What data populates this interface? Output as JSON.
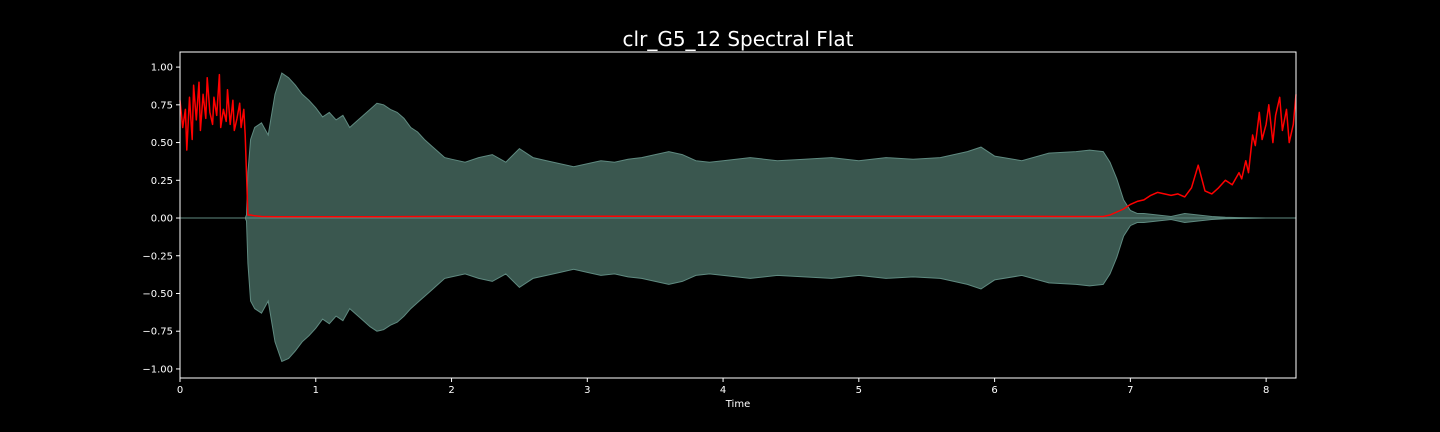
{
  "chart_data": {
    "type": "line",
    "title": "clr_G5_12 Spectral Flat",
    "xlabel": "Time",
    "ylabel": "",
    "xlim": [
      0,
      8.22
    ],
    "ylim": [
      -1.06,
      1.1
    ],
    "xticks": [
      0,
      1,
      2,
      3,
      4,
      5,
      6,
      7,
      8
    ],
    "xtick_labels": [
      "0",
      "1",
      "2",
      "3",
      "4",
      "5",
      "6",
      "7",
      "8"
    ],
    "yticks": [
      1.0,
      0.75,
      0.5,
      0.25,
      0.0,
      -0.25,
      -0.5,
      -0.75,
      -1.0
    ],
    "ytick_labels": [
      "1.00",
      "0.75",
      "0.50",
      "0.25",
      "0.00",
      "−0.25",
      "−0.50",
      "−0.75",
      "−1.00"
    ],
    "grid": false,
    "series": [
      {
        "kind": "waveform-envelope",
        "color": "#3a574f",
        "edge_color": "#5f8a80",
        "x": [
          0,
          0.48,
          0.49,
          0.5,
          0.52,
          0.55,
          0.6,
          0.65,
          0.7,
          0.75,
          0.8,
          0.85,
          0.9,
          0.95,
          1.0,
          1.05,
          1.1,
          1.15,
          1.2,
          1.25,
          1.3,
          1.35,
          1.4,
          1.45,
          1.5,
          1.55,
          1.6,
          1.65,
          1.7,
          1.75,
          1.8,
          1.85,
          1.9,
          1.95,
          2.0,
          2.1,
          2.2,
          2.3,
          2.4,
          2.5,
          2.6,
          2.7,
          2.8,
          2.9,
          3.0,
          3.1,
          3.2,
          3.3,
          3.4,
          3.5,
          3.6,
          3.7,
          3.8,
          3.9,
          4.0,
          4.2,
          4.4,
          4.6,
          4.8,
          5.0,
          5.2,
          5.4,
          5.6,
          5.8,
          5.9,
          6.0,
          6.2,
          6.4,
          6.6,
          6.7,
          6.8,
          6.85,
          6.9,
          6.95,
          7.0,
          7.05,
          7.1,
          7.2,
          7.3,
          7.4,
          7.5,
          7.6,
          7.7,
          7.8,
          8.0,
          8.22
        ],
        "upper": [
          0.0,
          0.0,
          0.02,
          0.3,
          0.52,
          0.6,
          0.63,
          0.55,
          0.82,
          0.96,
          0.93,
          0.88,
          0.82,
          0.78,
          0.73,
          0.67,
          0.7,
          0.65,
          0.68,
          0.6,
          0.64,
          0.68,
          0.72,
          0.76,
          0.75,
          0.72,
          0.7,
          0.66,
          0.6,
          0.57,
          0.52,
          0.48,
          0.44,
          0.4,
          0.39,
          0.37,
          0.4,
          0.42,
          0.37,
          0.46,
          0.4,
          0.38,
          0.36,
          0.34,
          0.36,
          0.38,
          0.37,
          0.39,
          0.4,
          0.42,
          0.44,
          0.42,
          0.38,
          0.37,
          0.38,
          0.4,
          0.38,
          0.39,
          0.4,
          0.38,
          0.4,
          0.39,
          0.4,
          0.44,
          0.47,
          0.41,
          0.38,
          0.43,
          0.44,
          0.45,
          0.44,
          0.37,
          0.26,
          0.12,
          0.05,
          0.03,
          0.03,
          0.02,
          0.01,
          0.03,
          0.02,
          0.01,
          0.005,
          0.003,
          0.0,
          0.0
        ],
        "lower": [
          0.0,
          0.0,
          -0.02,
          -0.3,
          -0.55,
          -0.6,
          -0.63,
          -0.55,
          -0.82,
          -0.95,
          -0.93,
          -0.88,
          -0.82,
          -0.78,
          -0.73,
          -0.67,
          -0.7,
          -0.65,
          -0.68,
          -0.6,
          -0.64,
          -0.68,
          -0.72,
          -0.75,
          -0.74,
          -0.71,
          -0.69,
          -0.65,
          -0.6,
          -0.56,
          -0.52,
          -0.48,
          -0.44,
          -0.4,
          -0.39,
          -0.37,
          -0.4,
          -0.42,
          -0.37,
          -0.46,
          -0.4,
          -0.38,
          -0.36,
          -0.34,
          -0.36,
          -0.38,
          -0.37,
          -0.39,
          -0.4,
          -0.42,
          -0.44,
          -0.42,
          -0.38,
          -0.37,
          -0.38,
          -0.4,
          -0.38,
          -0.39,
          -0.4,
          -0.38,
          -0.4,
          -0.39,
          -0.4,
          -0.44,
          -0.47,
          -0.41,
          -0.38,
          -0.43,
          -0.44,
          -0.45,
          -0.44,
          -0.37,
          -0.26,
          -0.12,
          -0.05,
          -0.03,
          -0.03,
          -0.02,
          -0.01,
          -0.03,
          -0.02,
          -0.01,
          -0.005,
          -0.003,
          0.0,
          0.0
        ]
      },
      {
        "kind": "line",
        "color": "#ff0000",
        "x": [
          0.0,
          0.02,
          0.04,
          0.05,
          0.07,
          0.09,
          0.1,
          0.12,
          0.14,
          0.15,
          0.17,
          0.19,
          0.2,
          0.22,
          0.24,
          0.25,
          0.27,
          0.29,
          0.3,
          0.32,
          0.34,
          0.35,
          0.37,
          0.39,
          0.4,
          0.42,
          0.44,
          0.45,
          0.47,
          0.48,
          0.5,
          0.52,
          0.55,
          0.6,
          0.7,
          0.8,
          1.0,
          1.5,
          2.0,
          3.0,
          4.0,
          5.0,
          6.0,
          6.5,
          6.7,
          6.8,
          6.85,
          6.9,
          6.95,
          7.0,
          7.05,
          7.1,
          7.15,
          7.2,
          7.25,
          7.3,
          7.35,
          7.4,
          7.45,
          7.5,
          7.55,
          7.6,
          7.65,
          7.7,
          7.75,
          7.8,
          7.82,
          7.85,
          7.87,
          7.9,
          7.92,
          7.95,
          7.97,
          8.0,
          8.02,
          8.05,
          8.07,
          8.1,
          8.12,
          8.15,
          8.17,
          8.2,
          8.22
        ],
        "y": [
          0.78,
          0.6,
          0.72,
          0.45,
          0.8,
          0.52,
          0.88,
          0.65,
          0.9,
          0.58,
          0.82,
          0.66,
          0.93,
          0.7,
          0.62,
          0.8,
          0.68,
          0.95,
          0.6,
          0.72,
          0.64,
          0.85,
          0.62,
          0.78,
          0.58,
          0.66,
          0.76,
          0.6,
          0.72,
          0.55,
          0.02,
          0.02,
          0.015,
          0.01,
          0.008,
          0.008,
          0.008,
          0.008,
          0.012,
          0.012,
          0.012,
          0.012,
          0.012,
          0.01,
          0.01,
          0.01,
          0.02,
          0.04,
          0.06,
          0.09,
          0.11,
          0.12,
          0.15,
          0.17,
          0.16,
          0.15,
          0.16,
          0.14,
          0.2,
          0.35,
          0.18,
          0.16,
          0.2,
          0.25,
          0.22,
          0.3,
          0.26,
          0.38,
          0.3,
          0.55,
          0.48,
          0.7,
          0.52,
          0.62,
          0.75,
          0.5,
          0.68,
          0.8,
          0.58,
          0.72,
          0.5,
          0.62,
          0.82
        ]
      }
    ]
  }
}
